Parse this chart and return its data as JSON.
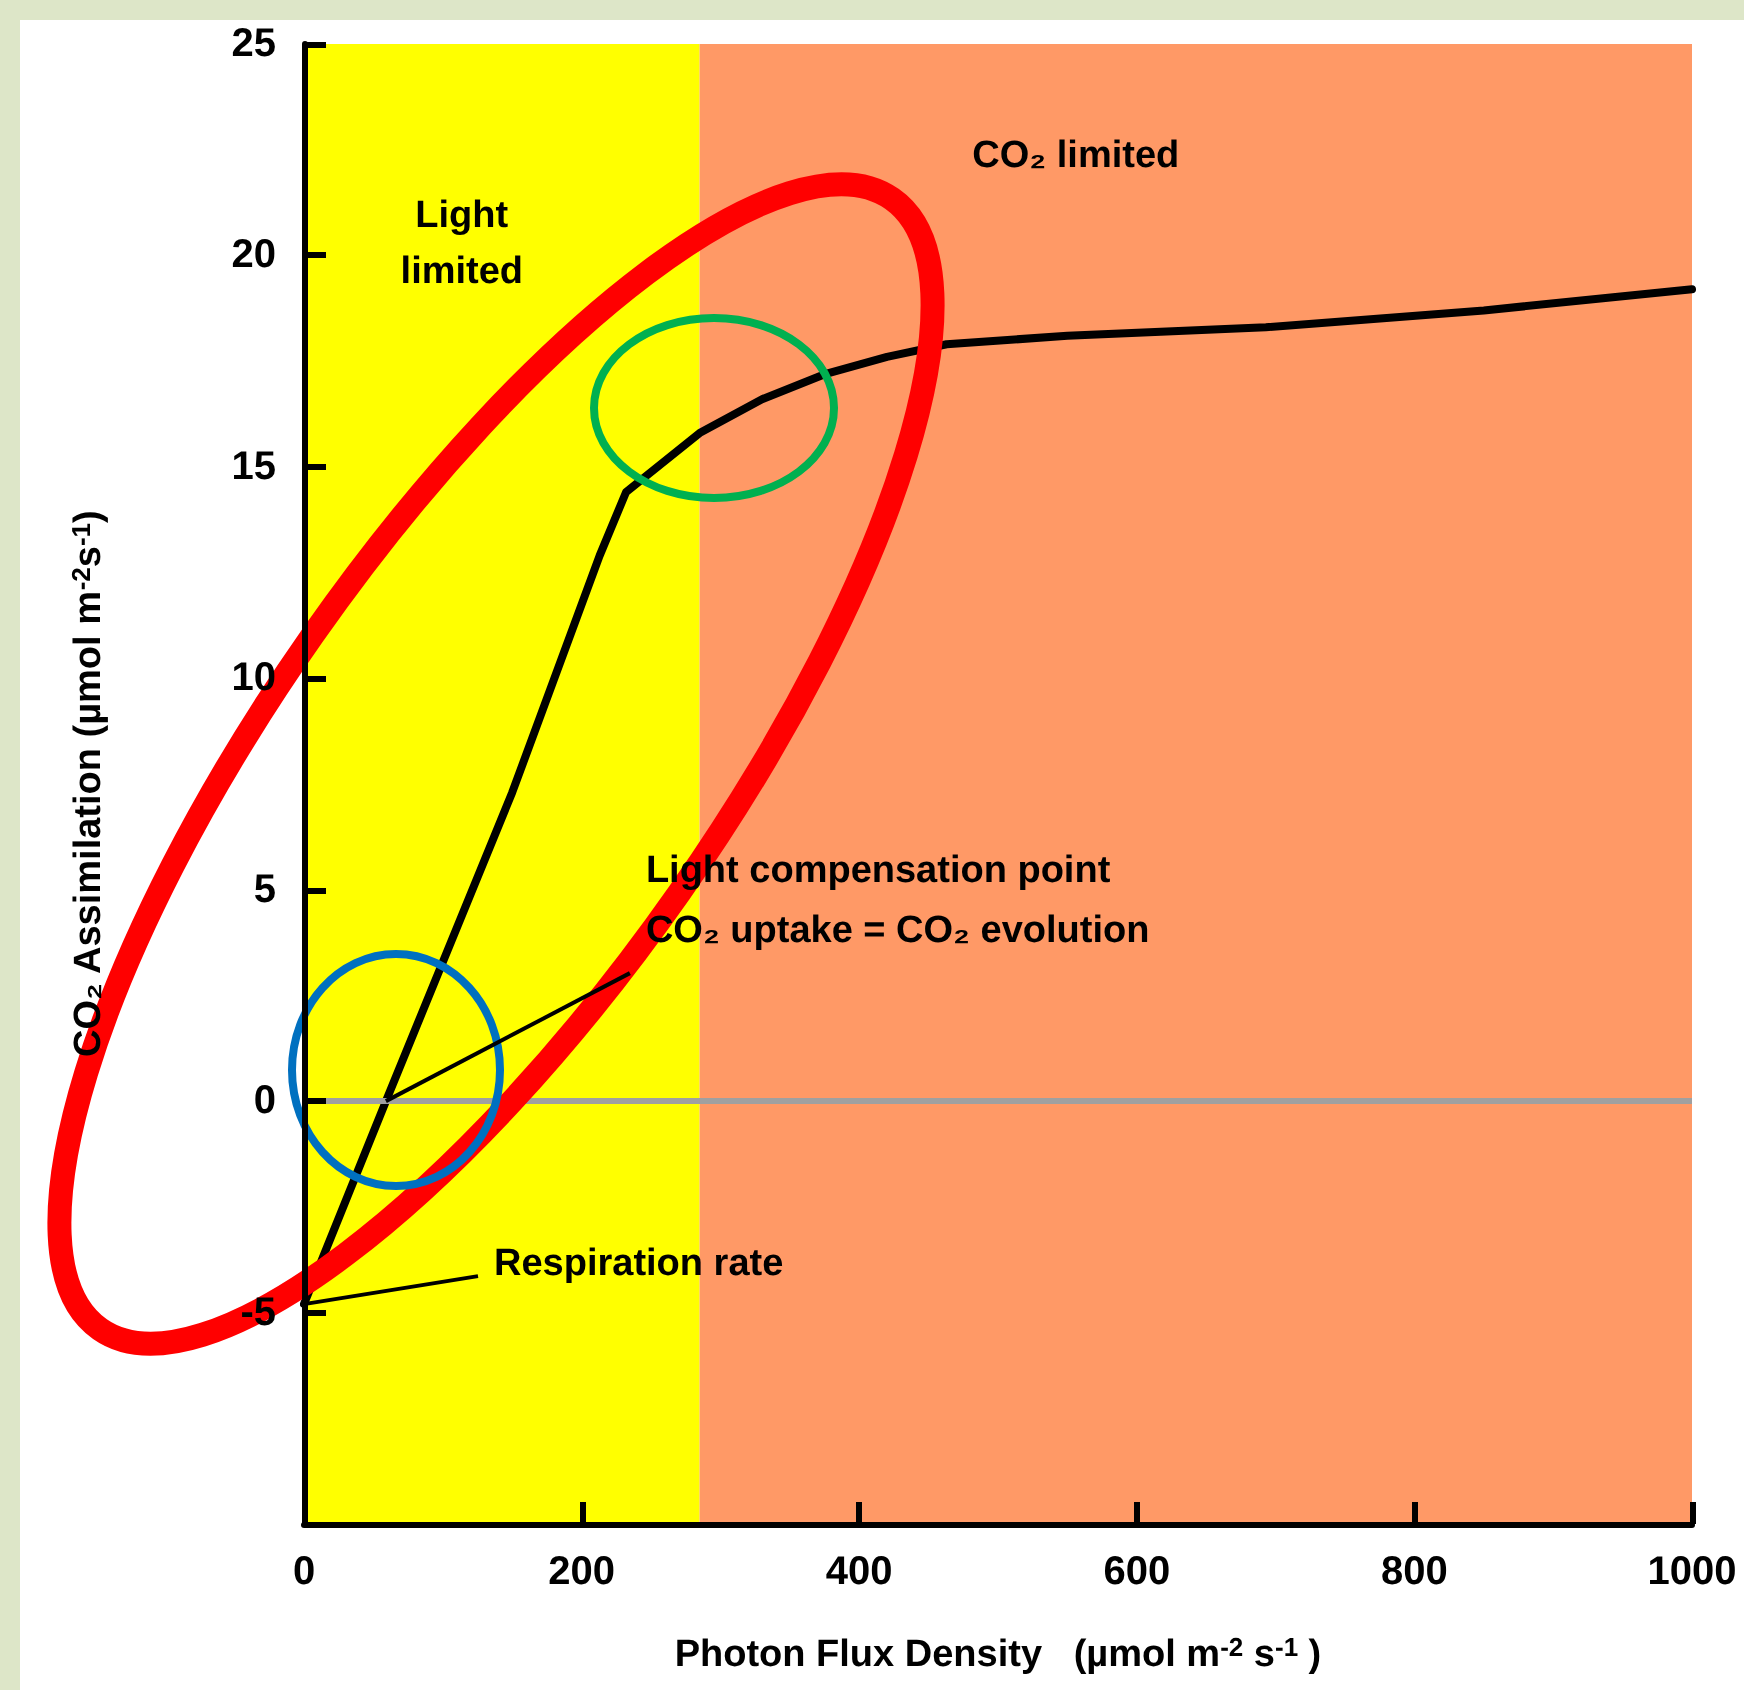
{
  "chart_data": {
    "type": "line",
    "xlabel": "Photon Flux Density   (µmol m$^{-2}$ s$^{-1}$ )",
    "ylabel": "CO₂ Assimilation (µmol m$^{-2}$s$^{-1}$)",
    "x": [
      0,
      59,
      150,
      213,
      232,
      285,
      330,
      376,
      420,
      463,
      550,
      693,
      850,
      1000
    ],
    "series": [
      {
        "color": "#000000",
        "values": [
          -4.8,
          0,
          7.3,
          12.9,
          14.4,
          15.8,
          16.6,
          17.2,
          17.6,
          17.9,
          18.1,
          18.3,
          18.7,
          19.2
        ]
      }
    ],
    "xlim": [
      0,
      1000
    ],
    "xticks": [
      0,
      200,
      400,
      600,
      800,
      1000
    ],
    "ylim": [
      -10,
      25
    ],
    "yticks": [
      -5,
      0,
      5,
      10,
      15,
      20,
      25
    ],
    "grid": false,
    "marker": "none",
    "line_style": "solid",
    "bands": [
      {
        "axis": "x",
        "from": 0,
        "to": 285,
        "color": "#ffff00",
        "label": "Light\nlimited"
      },
      {
        "axis": "x",
        "from": 285,
        "to": 1000,
        "color": "#ff9966",
        "label": "CO₂ limited"
      }
    ],
    "ref_lines": [
      {
        "axis": "y",
        "value": 0,
        "color": "#a0a0a0"
      }
    ],
    "annotations": [
      {
        "text": "Light compensation point\nCO₂ uptake = CO₂ evolution",
        "x": 59,
        "y": 0
      },
      {
        "text": "Respiration rate",
        "x": 0,
        "y": -4.8
      }
    ]
  }
}
